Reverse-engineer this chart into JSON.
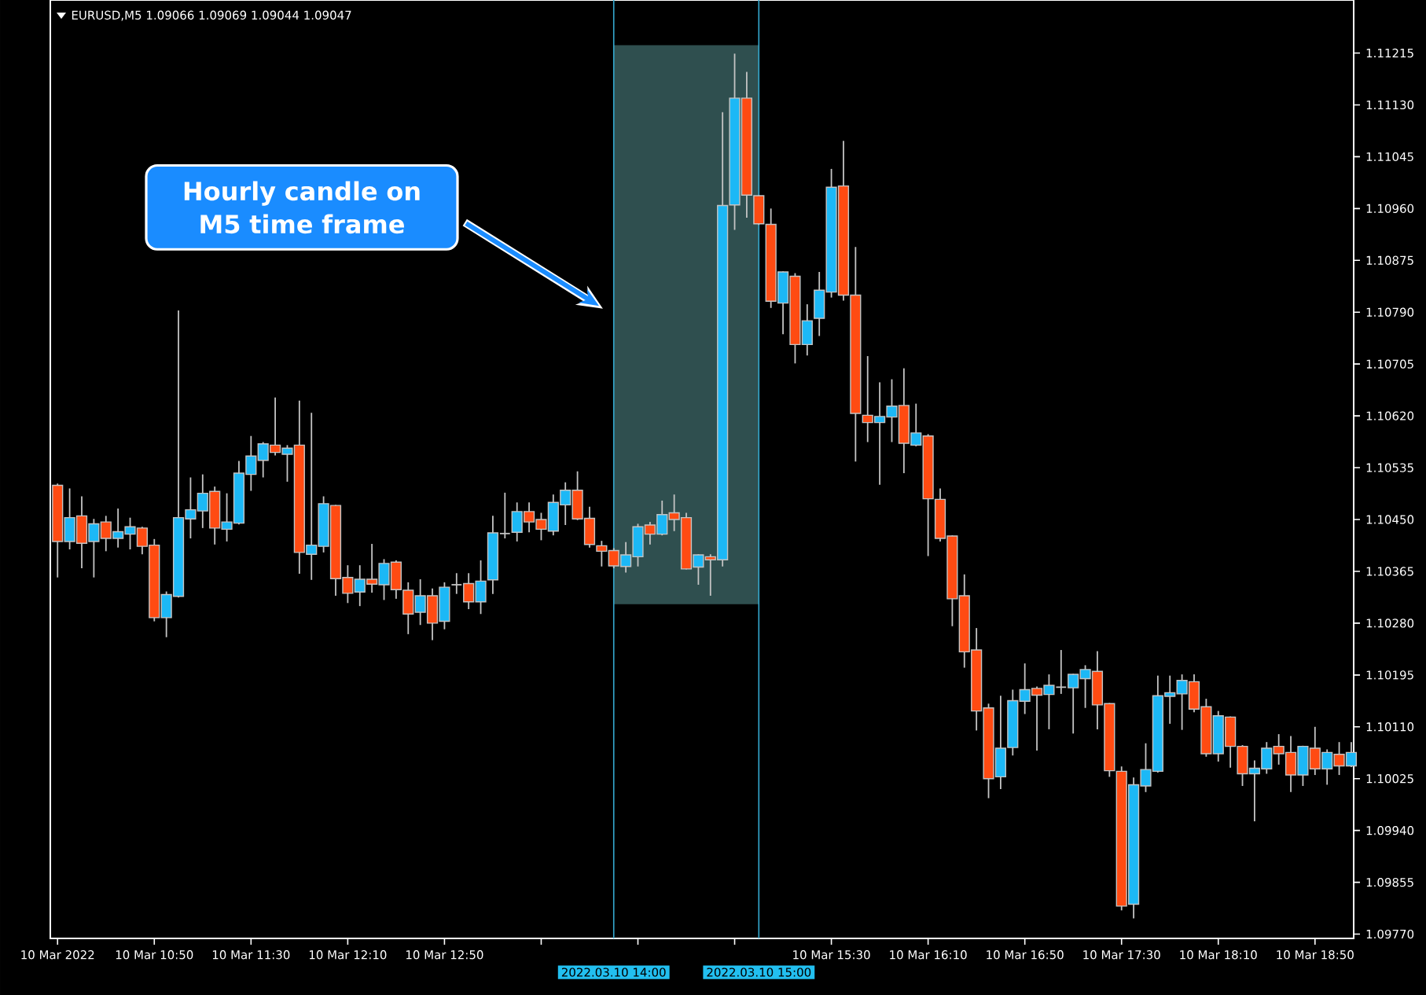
{
  "chart_data": {
    "type": "candlestick",
    "title": "EURUSD,M5 1.09066 1.09069 1.09044 1.09047",
    "annotations": [
      "Hourly candle on M5 time frame"
    ],
    "x": [
      "2022-03-10T10:10",
      "2022-03-10T10:15",
      "2022-03-10T10:20",
      "2022-03-10T10:25",
      "2022-03-10T10:30",
      "2022-03-10T10:35",
      "2022-03-10T10:40",
      "2022-03-10T10:45",
      "2022-03-10T10:50",
      "2022-03-10T10:55",
      "2022-03-10T11:00",
      "2022-03-10T11:05",
      "2022-03-10T11:10",
      "2022-03-10T11:15",
      "2022-03-10T11:20",
      "2022-03-10T11:25",
      "2022-03-10T11:30",
      "2022-03-10T11:35",
      "2022-03-10T11:40",
      "2022-03-10T11:45",
      "2022-03-10T11:50",
      "2022-03-10T11:55",
      "2022-03-10T12:00",
      "2022-03-10T12:05",
      "2022-03-10T12:10",
      "2022-03-10T12:15",
      "2022-03-10T12:20",
      "2022-03-10T12:25",
      "2022-03-10T12:30",
      "2022-03-10T12:35",
      "2022-03-10T12:40",
      "2022-03-10T12:45",
      "2022-03-10T12:50",
      "2022-03-10T12:55",
      "2022-03-10T13:00",
      "2022-03-10T13:05",
      "2022-03-10T13:10",
      "2022-03-10T13:15",
      "2022-03-10T13:20",
      "2022-03-10T13:25",
      "2022-03-10T13:30",
      "2022-03-10T13:35",
      "2022-03-10T13:40",
      "2022-03-10T13:45",
      "2022-03-10T13:50",
      "2022-03-10T13:55",
      "2022-03-10T14:00",
      "2022-03-10T14:05",
      "2022-03-10T14:10",
      "2022-03-10T14:15",
      "2022-03-10T14:20",
      "2022-03-10T14:25",
      "2022-03-10T14:30",
      "2022-03-10T14:35",
      "2022-03-10T14:40",
      "2022-03-10T14:45",
      "2022-03-10T14:50",
      "2022-03-10T14:55",
      "2022-03-10T15:00",
      "2022-03-10T15:05",
      "2022-03-10T15:10",
      "2022-03-10T15:15",
      "2022-03-10T15:20",
      "2022-03-10T15:25",
      "2022-03-10T15:30",
      "2022-03-10T15:35",
      "2022-03-10T15:40",
      "2022-03-10T15:45",
      "2022-03-10T15:50",
      "2022-03-10T15:55",
      "2022-03-10T16:00",
      "2022-03-10T16:05",
      "2022-03-10T16:10",
      "2022-03-10T16:15",
      "2022-03-10T16:20",
      "2022-03-10T16:25",
      "2022-03-10T16:30",
      "2022-03-10T16:35",
      "2022-03-10T16:40",
      "2022-03-10T16:45",
      "2022-03-10T16:50",
      "2022-03-10T16:55",
      "2022-03-10T17:00",
      "2022-03-10T17:05",
      "2022-03-10T17:10",
      "2022-03-10T17:15",
      "2022-03-10T17:20",
      "2022-03-10T17:25",
      "2022-03-10T17:30",
      "2022-03-10T17:35",
      "2022-03-10T17:40",
      "2022-03-10T17:45",
      "2022-03-10T17:50",
      "2022-03-10T17:55",
      "2022-03-10T18:00",
      "2022-03-10T18:05",
      "2022-03-10T18:10",
      "2022-03-10T18:15",
      "2022-03-10T18:20",
      "2022-03-10T18:25",
      "2022-03-10T18:30",
      "2022-03-10T18:35",
      "2022-03-10T18:40",
      "2022-03-10T18:45",
      "2022-03-10T18:50",
      "2022-03-10T18:55",
      "2022-03-10T19:00",
      "2022-03-10T19:05"
    ],
    "ohlc": [
      [
        1.10506,
        1.10509,
        1.10355,
        1.10414
      ],
      [
        1.10414,
        1.10501,
        1.10401,
        1.10453
      ],
      [
        1.10456,
        1.10488,
        1.1037,
        1.10411
      ],
      [
        1.10414,
        1.10451,
        1.10355,
        1.10443
      ],
      [
        1.10446,
        1.10456,
        1.10398,
        1.10419
      ],
      [
        1.10419,
        1.10468,
        1.10404,
        1.1043
      ],
      [
        1.10426,
        1.10453,
        1.10401,
        1.10438
      ],
      [
        1.10436,
        1.10438,
        1.10393,
        1.10406
      ],
      [
        1.10408,
        1.10418,
        1.10283,
        1.10289
      ],
      [
        1.10289,
        1.10332,
        1.10257,
        1.10327
      ],
      [
        1.10324,
        1.10793,
        1.10322,
        1.10453
      ],
      [
        1.10451,
        1.10519,
        1.10419,
        1.10466
      ],
      [
        1.10464,
        1.10524,
        1.10436,
        1.10493
      ],
      [
        1.10496,
        1.10504,
        1.10409,
        1.10436
      ],
      [
        1.10434,
        1.10493,
        1.10414,
        1.10446
      ],
      [
        1.10444,
        1.10546,
        1.10442,
        1.10526
      ],
      [
        1.10524,
        1.10587,
        1.10497,
        1.10554
      ],
      [
        1.10547,
        1.10577,
        1.10519,
        1.10574
      ],
      [
        1.10572,
        1.1065,
        1.10555,
        1.1056
      ],
      [
        1.10557,
        1.10572,
        1.10512,
        1.10567
      ],
      [
        1.10572,
        1.10645,
        1.10361,
        1.10396
      ],
      [
        1.10393,
        1.10625,
        1.10351,
        1.10408
      ],
      [
        1.10406,
        1.10488,
        1.10396,
        1.10476
      ],
      [
        1.10473,
        1.10474,
        1.10325,
        1.10353
      ],
      [
        1.10355,
        1.10375,
        1.10313,
        1.10329
      ],
      [
        1.10331,
        1.10375,
        1.10308,
        1.10352
      ],
      [
        1.10352,
        1.1041,
        1.1033,
        1.10344
      ],
      [
        1.10343,
        1.10385,
        1.10318,
        1.10378
      ],
      [
        1.1038,
        1.10383,
        1.1032,
        1.10335
      ],
      [
        1.10334,
        1.10347,
        1.10262,
        1.10295
      ],
      [
        1.10298,
        1.10352,
        1.10277,
        1.10325
      ],
      [
        1.10325,
        1.10337,
        1.10252,
        1.1028
      ],
      [
        1.10283,
        1.10347,
        1.1027,
        1.10339
      ],
      [
        1.10343,
        1.10362,
        1.10328,
        1.10343
      ],
      [
        1.10345,
        1.10362,
        1.10303,
        1.10315
      ],
      [
        1.10315,
        1.10383,
        1.10295,
        1.10349
      ],
      [
        1.10351,
        1.10456,
        1.10328,
        1.10428
      ],
      [
        1.10427,
        1.10494,
        1.10419,
        1.10427
      ],
      [
        1.10429,
        1.10478,
        1.10414,
        1.10463
      ],
      [
        1.10463,
        1.10478,
        1.10429,
        1.10446
      ],
      [
        1.1045,
        1.10461,
        1.10416,
        1.10434
      ],
      [
        1.10431,
        1.10491,
        1.10424,
        1.10478
      ],
      [
        1.10474,
        1.10511,
        1.10441,
        1.10498
      ],
      [
        1.10498,
        1.10529,
        1.10449,
        1.10451
      ],
      [
        1.10452,
        1.10471,
        1.10404,
        1.10409
      ],
      [
        1.10407,
        1.10415,
        1.10373,
        1.10398
      ],
      [
        1.10399,
        1.10403,
        1.1037,
        1.10374
      ],
      [
        1.10373,
        1.10413,
        1.10363,
        1.10392
      ],
      [
        1.10389,
        1.10443,
        1.10373,
        1.10438
      ],
      [
        1.10441,
        1.10446,
        1.10409,
        1.10426
      ],
      [
        1.10426,
        1.10481,
        1.10424,
        1.10458
      ],
      [
        1.10461,
        1.10491,
        1.10431,
        1.1045
      ],
      [
        1.10453,
        1.10461,
        1.10368,
        1.10369
      ],
      [
        1.10372,
        1.10393,
        1.10343,
        1.10392
      ],
      [
        1.10389,
        1.10393,
        1.10325,
        1.10384
      ],
      [
        1.10384,
        1.11118,
        1.10373,
        1.10965
      ],
      [
        1.10966,
        1.11214,
        1.10925,
        1.11141
      ],
      [
        1.11141,
        1.11184,
        1.10945,
        1.10982
      ],
      [
        1.10981,
        1.10982,
        1.10933,
        1.10935
      ],
      [
        1.10934,
        1.1096,
        1.10797,
        1.10808
      ],
      [
        1.10805,
        1.10857,
        1.10754,
        1.10856
      ],
      [
        1.10849,
        1.10854,
        1.10706,
        1.10737
      ],
      [
        1.10737,
        1.10803,
        1.10719,
        1.10776
      ],
      [
        1.1078,
        1.10856,
        1.10751,
        1.10826
      ],
      [
        1.10823,
        1.11025,
        1.10814,
        1.10995
      ],
      [
        1.10997,
        1.11071,
        1.10809,
        1.10818
      ],
      [
        1.10818,
        1.10897,
        1.10545,
        1.10624
      ],
      [
        1.10621,
        1.10718,
        1.10577,
        1.10609
      ],
      [
        1.10609,
        1.10675,
        1.10507,
        1.10619
      ],
      [
        1.10618,
        1.1068,
        1.10577,
        1.10636
      ],
      [
        1.10637,
        1.10698,
        1.10526,
        1.10575
      ],
      [
        1.10572,
        1.1064,
        1.1057,
        1.10592
      ],
      [
        1.10587,
        1.1059,
        1.1039,
        1.10484
      ],
      [
        1.10483,
        1.10501,
        1.10414,
        1.10419
      ],
      [
        1.10423,
        1.10424,
        1.10275,
        1.1032
      ],
      [
        1.10325,
        1.1036,
        1.10207,
        1.10233
      ],
      [
        1.10236,
        1.10272,
        1.10104,
        1.10136
      ],
      [
        1.10141,
        1.10148,
        1.09993,
        1.10025
      ],
      [
        1.10028,
        1.10161,
        1.10008,
        1.10075
      ],
      [
        1.10076,
        1.10171,
        1.10063,
        1.10153
      ],
      [
        1.10152,
        1.10214,
        1.10131,
        1.10171
      ],
      [
        1.10173,
        1.10176,
        1.10071,
        1.10162
      ],
      [
        1.10163,
        1.10196,
        1.10106,
        1.10178
      ],
      [
        1.10175,
        1.10236,
        1.10164,
        1.10175
      ],
      [
        1.10174,
        1.10197,
        1.10099,
        1.10196
      ],
      [
        1.10189,
        1.10211,
        1.10141,
        1.10204
      ],
      [
        1.10201,
        1.10234,
        1.10106,
        1.10146
      ],
      [
        1.10148,
        1.10149,
        1.10028,
        1.10038
      ],
      [
        1.10037,
        1.10045,
        1.09809,
        1.09816
      ],
      [
        1.09819,
        1.10027,
        1.09796,
        1.10015
      ],
      [
        1.10013,
        1.10083,
        1.10003,
        1.1004
      ],
      [
        1.10037,
        1.10194,
        1.10035,
        1.10161
      ],
      [
        1.1016,
        1.10194,
        1.10115,
        1.10166
      ],
      [
        1.10164,
        1.10196,
        1.10105,
        1.10186
      ],
      [
        1.10184,
        1.10196,
        1.10134,
        1.10139
      ],
      [
        1.10143,
        1.10156,
        1.10061,
        1.10066
      ],
      [
        1.10066,
        1.10136,
        1.10053,
        1.10128
      ],
      [
        1.10126,
        1.10127,
        1.10043,
        1.10078
      ],
      [
        1.10078,
        1.1008,
        1.10013,
        1.10033
      ],
      [
        1.10033,
        1.10055,
        1.09955,
        1.10042
      ],
      [
        1.10041,
        1.10085,
        1.10033,
        1.10075
      ],
      [
        1.10078,
        1.10098,
        1.10048,
        1.10066
      ],
      [
        1.10068,
        1.10095,
        1.10003,
        1.10031
      ],
      [
        1.10031,
        1.10079,
        1.10013,
        1.10078
      ],
      [
        1.10075,
        1.1011,
        1.10031,
        1.10041
      ],
      [
        1.10041,
        1.10073,
        1.10015,
        1.10068
      ],
      [
        1.10065,
        1.10085,
        1.10031,
        1.10046
      ],
      [
        1.10046,
        1.10085,
        1.10044,
        1.10068
      ]
    ],
    "xlim": [
      "2022-03-10T10:07",
      "2022-03-10T19:06"
    ],
    "xticks": [
      {
        "value": "2022-03-10T10:10",
        "label": "10 Mar 2022"
      },
      {
        "value": "2022-03-10T10:50",
        "label": "10 Mar 10:50"
      },
      {
        "value": "2022-03-10T11:30",
        "label": "10 Mar 11:30"
      },
      {
        "value": "2022-03-10T12:10",
        "label": "10 Mar 12:10"
      },
      {
        "value": "2022-03-10T12:50",
        "label": "10 Mar 12:50"
      },
      {
        "value": "2022-03-10T13:30",
        "label": null
      },
      {
        "value": "2022-03-10T14:10",
        "label": null
      },
      {
        "value": "2022-03-10T14:50",
        "label": null
      },
      {
        "value": "2022-03-10T15:30",
        "label": "10 Mar 15:30"
      },
      {
        "value": "2022-03-10T16:10",
        "label": "10 Mar 16:10"
      },
      {
        "value": "2022-03-10T16:50",
        "label": "10 Mar 16:50"
      },
      {
        "value": "2022-03-10T17:30",
        "label": "10 Mar 17:30"
      },
      {
        "value": "2022-03-10T18:10",
        "label": "10 Mar 18:10"
      },
      {
        "value": "2022-03-10T18:50",
        "label": "10 Mar 18:50"
      }
    ],
    "ylim": [
      1.09763,
      1.11302
    ],
    "yticks": [
      1.11215,
      {
        "value": 1.1113,
        "label": "1.11130"
      },
      1.11045,
      {
        "value": 1.1096,
        "label": "1.10960"
      },
      1.10875,
      {
        "value": 1.1079,
        "label": "1.10790"
      },
      1.10705,
      {
        "value": 1.1062,
        "label": "1.10620"
      },
      1.10535,
      {
        "value": 1.1045,
        "label": "1.10450"
      },
      1.10365,
      {
        "value": 1.1028,
        "label": "1.10280"
      },
      1.10195,
      {
        "value": 1.1011,
        "label": "1.10110"
      },
      1.10025,
      {
        "value": 1.0994,
        "label": "1.09940"
      },
      1.09855,
      {
        "value": 1.0977,
        "label": "1.09770"
      }
    ],
    "ref_lines": [
      {
        "axis": "x",
        "value": "2022-03-10T14:00",
        "label": "2022.03.10 14:00",
        "color": "#35a9d0"
      },
      {
        "axis": "x",
        "value": "2022-03-10T15:00",
        "label": "2022.03.10 15:00",
        "color": "#35a9d0"
      }
    ],
    "bands": [
      {
        "axis": "x",
        "from": "2022-03-10T14:00",
        "to": "2022-03-10T15:00",
        "color": "#2f4f4f"
      }
    ]
  }
}
